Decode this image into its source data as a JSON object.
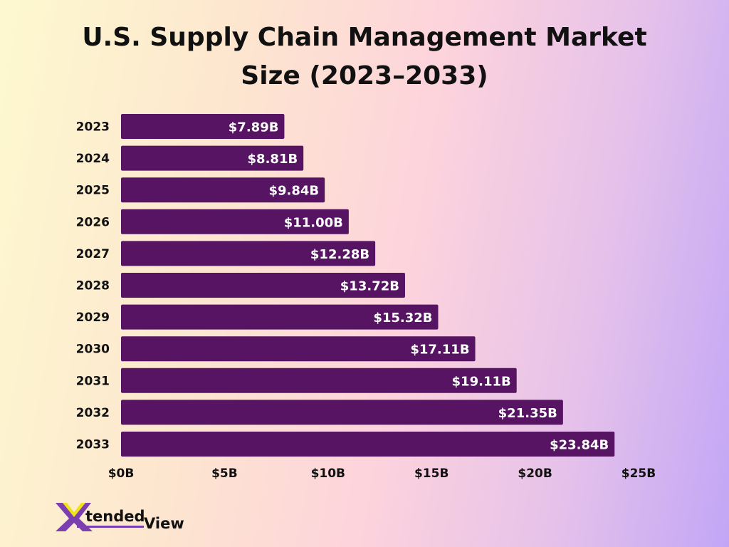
{
  "chart_data": {
    "type": "bar",
    "orientation": "horizontal",
    "title_lines": [
      "U.S. Supply Chain Management Market",
      "Size (2023–2033)"
    ],
    "categories": [
      "2023",
      "2024",
      "2025",
      "2026",
      "2027",
      "2028",
      "2029",
      "2030",
      "2031",
      "2032",
      "2033"
    ],
    "values": [
      7.89,
      8.81,
      9.84,
      11.0,
      12.28,
      13.72,
      15.32,
      17.11,
      19.11,
      21.35,
      23.84
    ],
    "data_labels": [
      "$7.89B",
      "$8.81B",
      "$9.84B",
      "$11.00B",
      "$12.28B",
      "$13.72B",
      "$15.32B",
      "$17.11B",
      "$19.11B",
      "$21.35B",
      "$23.84B"
    ],
    "unit": "billion USD",
    "xlim": [
      0,
      25
    ],
    "x_ticks": [
      0,
      5,
      10,
      15,
      20,
      25
    ],
    "x_tick_labels": [
      "$0B",
      "$5B",
      "$10B",
      "$15B",
      "$20B",
      "$25B"
    ],
    "xlabel": "",
    "ylabel": "",
    "grid": false,
    "legend": "none",
    "bar_color": "#561463"
  },
  "logo": {
    "text_part1": "tended",
    "text_part2": "View",
    "letter": "X",
    "colors": {
      "purple": "#7b3fb0",
      "yellow": "#f2e21c"
    }
  }
}
